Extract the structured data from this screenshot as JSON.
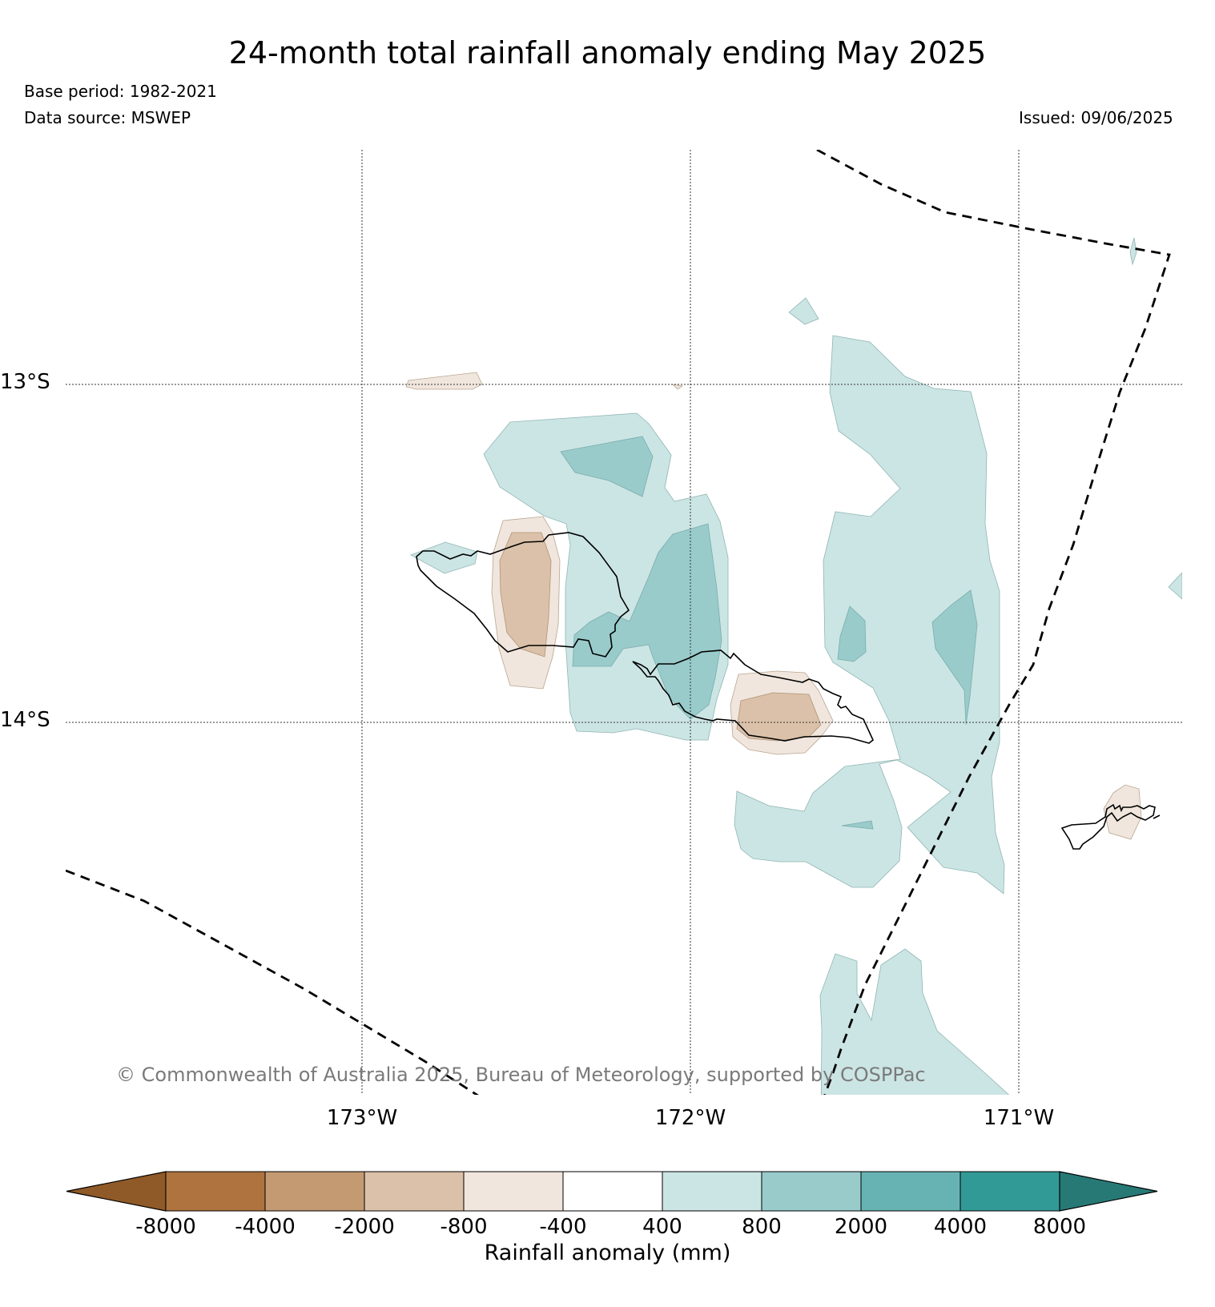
{
  "header": {
    "title": "24-month total rainfall anomaly ending May 2025",
    "base_period": "Base period: 1982-2021",
    "data_source": "Data source: MSWEP",
    "issued": "Issued: 09/06/2025"
  },
  "map": {
    "lat_ticks": [
      "13°S",
      "14°S"
    ],
    "lon_ticks": [
      "173°W",
      "172°W",
      "171°W"
    ],
    "copyright": "© Commonwealth of Australia 2025, Bureau of Meteorology, supported by COSPPac"
  },
  "colorbar": {
    "title": "Rainfall anomaly (mm)",
    "labels": [
      "-8000",
      "-4000",
      "-2000",
      "-800",
      "-400",
      "400",
      "800",
      "2000",
      "4000",
      "8000"
    ],
    "colors": [
      "#8f5a28",
      "#ae733e",
      "#c39a72",
      "#dbc1a9",
      "#f0e6dd",
      "#ffffff",
      "#cbe5e4",
      "#99cbcb",
      "#67b3b3",
      "#329a96",
      "#277976"
    ]
  }
}
